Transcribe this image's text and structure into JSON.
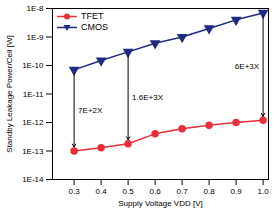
{
  "chart_data": {
    "type": "line",
    "x_label": "Supply Voltage VDD [V]",
    "y_label": "Standby Leakage Power/Cell [W]",
    "x": [
      0.3,
      0.4,
      0.5,
      0.6,
      0.7,
      0.8,
      0.9,
      1.0
    ],
    "series": [
      {
        "name": "TFET",
        "color": "#e8303a",
        "marker": "circle",
        "values": [
          1e-13,
          1.3e-13,
          1.8e-13,
          4e-13,
          6e-13,
          8e-13,
          1e-12,
          1.2e-12
        ]
      },
      {
        "name": "CMOS",
        "color": "#1f2a80",
        "marker": "triangle-down",
        "values": [
          7e-11,
          1.5e-10,
          3e-10,
          6e-10,
          1e-09,
          2e-09,
          4e-09,
          7e-09
        ]
      }
    ],
    "annotations": [
      {
        "text": "7E+2X",
        "x": 0.3
      },
      {
        "text": "1.6E+3X",
        "x": 0.5
      },
      {
        "text": "6E+3X",
        "x": 1.0
      }
    ],
    "log": "y",
    "legend": "top-left",
    "grid": false,
    "xlim": [
      0.22,
      1.02
    ],
    "xticks": [
      0.3,
      0.4,
      0.5,
      0.6,
      0.7,
      0.8,
      0.9,
      {
        "value": 1.0,
        "label": "1.0"
      }
    ],
    "ylim": [
      1e-14,
      1e-08
    ],
    "yticks": [
      {
        "value": 1e-14,
        "label": "1E-14"
      },
      {
        "value": 1e-13,
        "label": "1E-13"
      },
      {
        "value": 1e-12,
        "label": "1E-12"
      },
      {
        "value": 1e-11,
        "label": "1E-11"
      },
      {
        "value": 1e-10,
        "label": "1E-10"
      },
      {
        "value": 1e-09,
        "label": "1E-9"
      },
      {
        "value": 1e-08,
        "label": "1E-8"
      }
    ]
  }
}
